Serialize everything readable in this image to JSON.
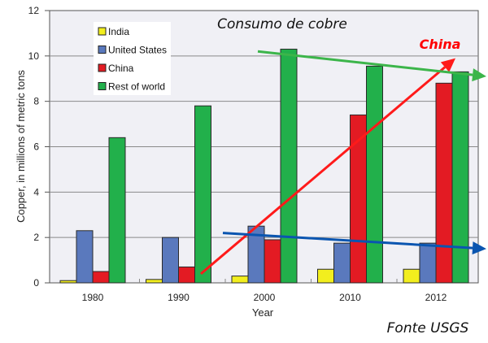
{
  "chart_data": {
    "type": "bar",
    "title": "Consumo de cobre",
    "source": "Fonte USGS",
    "xlabel": "Year",
    "ylabel": "Copper, in millions of metric tons",
    "ylim": [
      0,
      12
    ],
    "yticks": [
      "0",
      "2",
      "4",
      "6",
      "8",
      "10",
      "12"
    ],
    "grid": true,
    "legend_position": "top-left",
    "categories": [
      "1980",
      "1990",
      "2000",
      "2010",
      "2012"
    ],
    "series": [
      {
        "name": "India",
        "color": "#f2ee1e",
        "values": [
          0.1,
          0.15,
          0.3,
          0.6,
          0.6
        ]
      },
      {
        "name": "United States",
        "color": "#5a79bd",
        "values": [
          2.3,
          2.0,
          2.5,
          1.75,
          1.75
        ]
      },
      {
        "name": "China",
        "color": "#e31b23",
        "values": [
          0.5,
          0.7,
          1.9,
          7.4,
          8.8
        ]
      },
      {
        "name": "Rest of world",
        "color": "#22b04b",
        "values": [
          6.4,
          7.8,
          10.3,
          9.55,
          9.3
        ]
      }
    ],
    "annotations": {
      "china_label": "China",
      "trend_arrows": [
        {
          "name": "china-trend",
          "color": "#ff1a1a",
          "from": [
            "1990",
            0.4
          ],
          "to": [
            "2012",
            9.9
          ]
        },
        {
          "name": "rest-of-world-trend",
          "color": "#3cb54a",
          "from": [
            "2000",
            10.2
          ],
          "to": [
            "2012+",
            9.1
          ]
        },
        {
          "name": "united-states-trend",
          "color": "#0a55b0",
          "from": [
            "2000",
            2.2
          ],
          "to": [
            "2012+",
            1.5
          ]
        }
      ]
    }
  }
}
